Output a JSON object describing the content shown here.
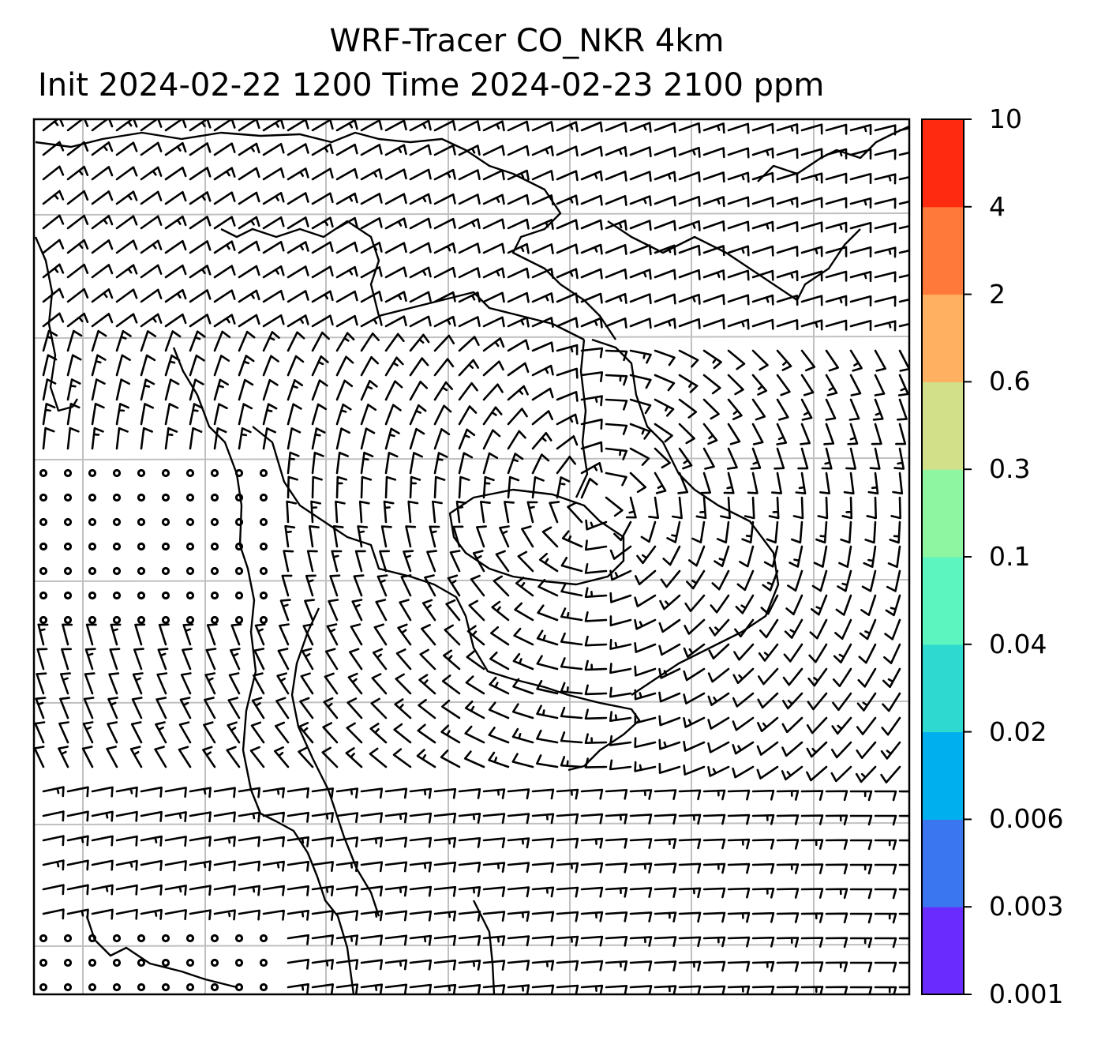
{
  "title_line1": "WRF-Tracer CO_NKR 4km",
  "title_line2": "Init 2024-02-22 1200 Time 2024-02-23 2100 ppm",
  "colorbar": {
    "levels": [
      "0.001",
      "0.003",
      "0.006",
      "0.02",
      "0.04",
      "0.1",
      "0.3",
      "0.6",
      "2",
      "4",
      "10"
    ],
    "colors": [
      "#6a2bff",
      "#3a76f0",
      "#00b0ee",
      "#2edad0",
      "#5cf5c0",
      "#8ef5a0",
      "#d2e08a",
      "#ffb060",
      "#ff7a3a",
      "#ff2a10"
    ]
  },
  "map": {
    "gridlines": true,
    "features": [
      "coastlines",
      "country-borders",
      "wind-barbs",
      "calm-wind-circles"
    ]
  }
}
